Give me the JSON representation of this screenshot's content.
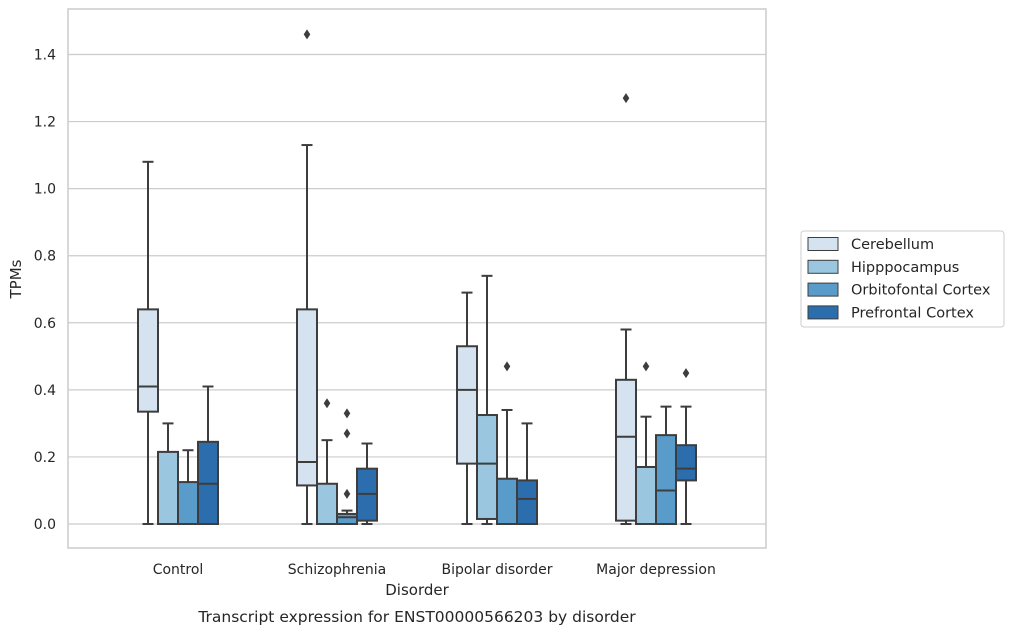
{
  "caption": "Transcript expression for ENST00000566203 by disorder",
  "chart_data": {
    "type": "box",
    "title": "",
    "xlabel": "Disorder",
    "ylabel": "TPMs",
    "ylim": [
      -0.07,
      1.54
    ],
    "yticks": [
      0.0,
      0.2,
      0.4,
      0.6,
      0.8,
      1.0,
      1.2,
      1.4
    ],
    "ytick_labels": [
      "0.0",
      "0.2",
      "0.4",
      "0.6",
      "0.8",
      "1.0",
      "1.2",
      "1.4"
    ],
    "grid": true,
    "legend_position": "right",
    "categories": [
      "Control",
      "Schizophrenia",
      "Bipolar disorder",
      "Major depression"
    ],
    "series": [
      {
        "name": "Cerebellum",
        "color": "#d5e3f1",
        "boxes": [
          {
            "whislo": 0.0,
            "q1": 0.335,
            "med": 0.41,
            "q3": 0.64,
            "whishi": 1.08,
            "fliers": []
          },
          {
            "whislo": 0.0,
            "q1": 0.115,
            "med": 0.185,
            "q3": 0.64,
            "whishi": 1.13,
            "fliers": [
              1.46
            ]
          },
          {
            "whislo": 0.0,
            "q1": 0.18,
            "med": 0.4,
            "q3": 0.53,
            "whishi": 0.69,
            "fliers": []
          },
          {
            "whislo": 0.0,
            "q1": 0.01,
            "med": 0.26,
            "q3": 0.43,
            "whishi": 0.58,
            "fliers": [
              1.27
            ]
          }
        ]
      },
      {
        "name": "Hipppocampus",
        "color": "#9ac6df",
        "boxes": [
          {
            "whislo": 0.0,
            "q1": 0.0,
            "med": 0.0,
            "q3": 0.215,
            "whishi": 0.3,
            "fliers": []
          },
          {
            "whislo": 0.0,
            "q1": 0.0,
            "med": 0.0,
            "q3": 0.12,
            "whishi": 0.25,
            "fliers": [
              0.36
            ]
          },
          {
            "whislo": 0.0,
            "q1": 0.015,
            "med": 0.18,
            "q3": 0.325,
            "whishi": 0.74,
            "fliers": []
          },
          {
            "whislo": 0.0,
            "q1": 0.0,
            "med": 0.0,
            "q3": 0.17,
            "whishi": 0.32,
            "fliers": [
              0.47
            ]
          }
        ]
      },
      {
        "name": "Orbitofontal Cortex",
        "color": "#5a9cc9",
        "boxes": [
          {
            "whislo": 0.0,
            "q1": 0.0,
            "med": 0.0,
            "q3": 0.125,
            "whishi": 0.22,
            "fliers": []
          },
          {
            "whislo": 0.0,
            "q1": 0.0,
            "med": 0.02,
            "q3": 0.03,
            "whishi": 0.04,
            "fliers": [
              0.09,
              0.27,
              0.33
            ]
          },
          {
            "whislo": 0.0,
            "q1": 0.0,
            "med": 0.0,
            "q3": 0.135,
            "whishi": 0.34,
            "fliers": [
              0.47
            ]
          },
          {
            "whislo": 0.0,
            "q1": 0.0,
            "med": 0.1,
            "q3": 0.265,
            "whishi": 0.35,
            "fliers": []
          }
        ]
      },
      {
        "name": "Prefrontal Cortex",
        "color": "#2c6ead",
        "boxes": [
          {
            "whislo": 0.0,
            "q1": 0.0,
            "med": 0.12,
            "q3": 0.245,
            "whishi": 0.41,
            "fliers": []
          },
          {
            "whislo": 0.0,
            "q1": 0.01,
            "med": 0.09,
            "q3": 0.165,
            "whishi": 0.24,
            "fliers": []
          },
          {
            "whislo": 0.0,
            "q1": 0.0,
            "med": 0.075,
            "q3": 0.13,
            "whishi": 0.3,
            "fliers": []
          },
          {
            "whislo": 0.0,
            "q1": 0.13,
            "med": 0.165,
            "q3": 0.235,
            "whishi": 0.35,
            "fliers": [
              0.45
            ]
          }
        ]
      }
    ]
  }
}
